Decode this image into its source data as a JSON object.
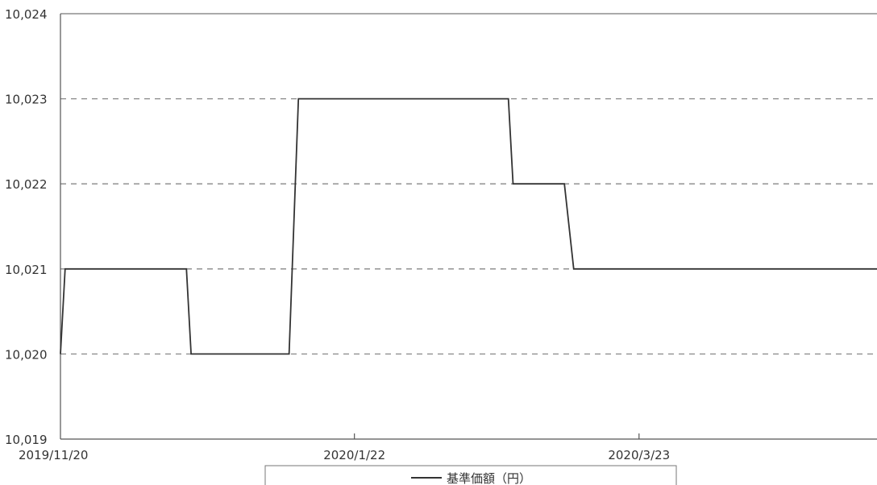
{
  "chart_data": {
    "type": "line",
    "title": "",
    "xlabel": "",
    "ylabel": "",
    "ylim": [
      10019,
      10024
    ],
    "y_ticks": [
      {
        "value": 10019,
        "label": "10,019"
      },
      {
        "value": 10020,
        "label": "10,020"
      },
      {
        "value": 10021,
        "label": "10,021"
      },
      {
        "value": 10022,
        "label": "10,022"
      },
      {
        "value": 10023,
        "label": "10,023"
      },
      {
        "value": 10024,
        "label": "10,024"
      }
    ],
    "x_start": "2019-11-20",
    "x_end": "2020-05-13",
    "x_ticks": [
      {
        "date": "2019-11-20",
        "label": "2019/11/20"
      },
      {
        "date": "2020-01-22",
        "label": "2020/1/22"
      },
      {
        "date": "2020-03-23",
        "label": "2020/3/23"
      }
    ],
    "grid": {
      "y": true,
      "x": false,
      "style": "dashed"
    },
    "legend": {
      "position": "bottom",
      "entries": [
        "基準価額（円）"
      ]
    },
    "colors": {
      "line": "#333333",
      "grid": "#888888",
      "axis": "#555555"
    },
    "series": [
      {
        "name": "基準価額（円）",
        "points": [
          {
            "x": "2019-11-20",
            "y": 10020
          },
          {
            "x": "2019-11-21",
            "y": 10021
          },
          {
            "x": "2019-12-17",
            "y": 10021
          },
          {
            "x": "2019-12-18",
            "y": 10020
          },
          {
            "x": "2020-01-08",
            "y": 10020
          },
          {
            "x": "2020-01-10",
            "y": 10023
          },
          {
            "x": "2020-02-24",
            "y": 10023
          },
          {
            "x": "2020-02-25",
            "y": 10022
          },
          {
            "x": "2020-03-07",
            "y": 10022
          },
          {
            "x": "2020-03-09",
            "y": 10021
          },
          {
            "x": "2020-05-13",
            "y": 10021
          }
        ]
      }
    ]
  }
}
